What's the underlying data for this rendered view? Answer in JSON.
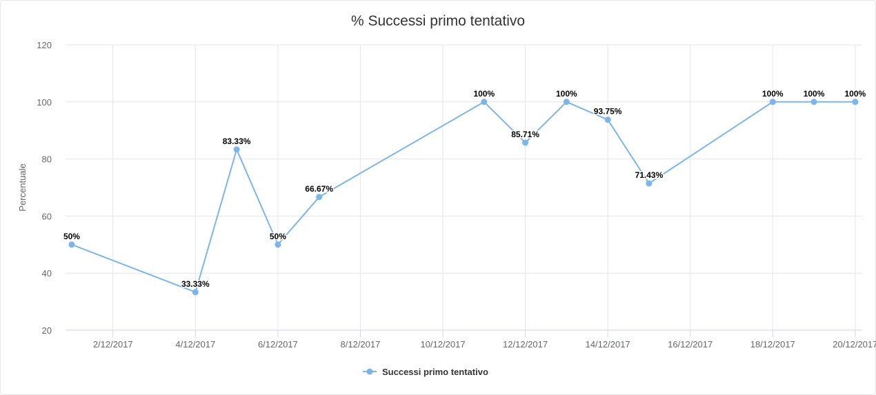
{
  "chart_data": {
    "type": "line",
    "title": "% Successi primo tentativo",
    "xlabel": "",
    "ylabel": "Percentuale",
    "ylim": [
      20,
      120
    ],
    "yticks": [
      20,
      40,
      60,
      80,
      100,
      120
    ],
    "xlim_day": [
      0.85,
      20.17
    ],
    "xticks": [
      {
        "day": 2,
        "label": "2/12/2017"
      },
      {
        "day": 4,
        "label": "4/12/2017"
      },
      {
        "day": 6,
        "label": "6/12/2017"
      },
      {
        "day": 8,
        "label": "8/12/2017"
      },
      {
        "day": 10,
        "label": "10/12/2017"
      },
      {
        "day": 12,
        "label": "12/12/2017"
      },
      {
        "day": 14,
        "label": "14/12/2017"
      },
      {
        "day": 16,
        "label": "16/12/2017"
      },
      {
        "day": 18,
        "label": "18/12/2017"
      },
      {
        "day": 20,
        "label": "20/12/2017"
      }
    ],
    "grid": true,
    "legend_position": "bottom",
    "series": [
      {
        "name": "Successi primo tentativo",
        "color": "#7cb5ec",
        "points": [
          {
            "x": "1/12/2017",
            "day": 1,
            "y": 50,
            "label": "50%"
          },
          {
            "x": "4/12/2017",
            "day": 4,
            "y": 33.33,
            "label": "33.33%"
          },
          {
            "x": "5/12/2017",
            "day": 5,
            "y": 83.33,
            "label": "83.33%"
          },
          {
            "x": "6/12/2017",
            "day": 6,
            "y": 50,
            "label": "50%"
          },
          {
            "x": "7/12/2017",
            "day": 7,
            "y": 66.67,
            "label": "66.67%"
          },
          {
            "x": "11/12/2017",
            "day": 11,
            "y": 100,
            "label": "100%"
          },
          {
            "x": "12/12/2017",
            "day": 12,
            "y": 85.71,
            "label": "85.71%"
          },
          {
            "x": "13/12/2017",
            "day": 13,
            "y": 100,
            "label": "100%"
          },
          {
            "x": "14/12/2017",
            "day": 14,
            "y": 93.75,
            "label": "93.75%"
          },
          {
            "x": "15/12/2017",
            "day": 15,
            "y": 71.43,
            "label": "71.43%"
          },
          {
            "x": "18/12/2017",
            "day": 18,
            "y": 100,
            "label": "100%"
          },
          {
            "x": "19/12/2017",
            "day": 19,
            "y": 100,
            "label": "100%"
          },
          {
            "x": "20/12/2017",
            "day": 20,
            "y": 100,
            "label": "100%"
          }
        ]
      }
    ]
  }
}
